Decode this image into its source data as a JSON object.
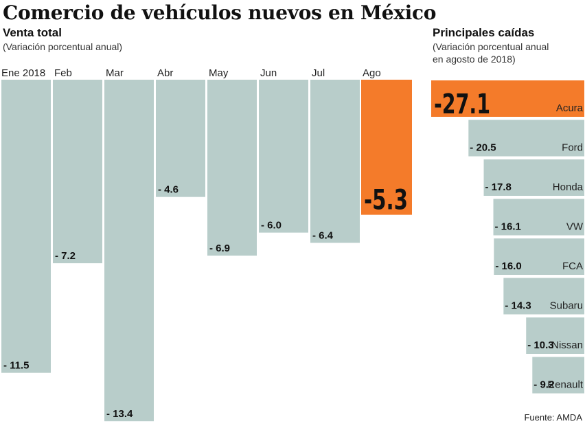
{
  "title": "Comercio de vehículos nuevos en México",
  "left_panel": {
    "title": "Venta total",
    "note": "(Variación porcentual anual)"
  },
  "right_panel": {
    "title": "Principales caídas",
    "note_line1": "(Variación porcentual anual",
    "note_line2": "en agosto de 2018)"
  },
  "source": "Fuente: AMDA",
  "colors": {
    "bar": "#b8cdca",
    "highlight": "#f47b2a"
  },
  "chart_data": [
    {
      "type": "bar",
      "orientation": "vertical-downward",
      "categories": [
        "Ene 2018",
        "Feb",
        "Mar",
        "Abr",
        "May",
        "Jun",
        "Jul",
        "Ago"
      ],
      "values": [
        -11.5,
        -7.2,
        -13.4,
        -4.6,
        -6.9,
        -6.0,
        -6.4,
        -5.3
      ],
      "labels": [
        "- 11.5",
        "- 7.2",
        "- 13.4",
        "- 4.6",
        "- 6.9",
        "- 6.0",
        "- 6.4",
        "-5.3"
      ],
      "highlight": "Ago",
      "grid": false
    },
    {
      "type": "bar",
      "orientation": "horizontal-right-aligned",
      "categories": [
        "Acura",
        "Ford",
        "Honda",
        "VW",
        "FCA",
        "Subaru",
        "Nissan",
        "Renault"
      ],
      "values": [
        -27.1,
        -20.5,
        -17.8,
        -16.1,
        -16.0,
        -14.3,
        -10.3,
        -9.2
      ],
      "labels": [
        "-27.1",
        "- 20.5",
        "- 17.8",
        "- 16.1",
        "- 16.0",
        "- 14.3",
        "- 10.3",
        "- 9.2"
      ],
      "highlight": "Acura",
      "grid": false
    }
  ]
}
